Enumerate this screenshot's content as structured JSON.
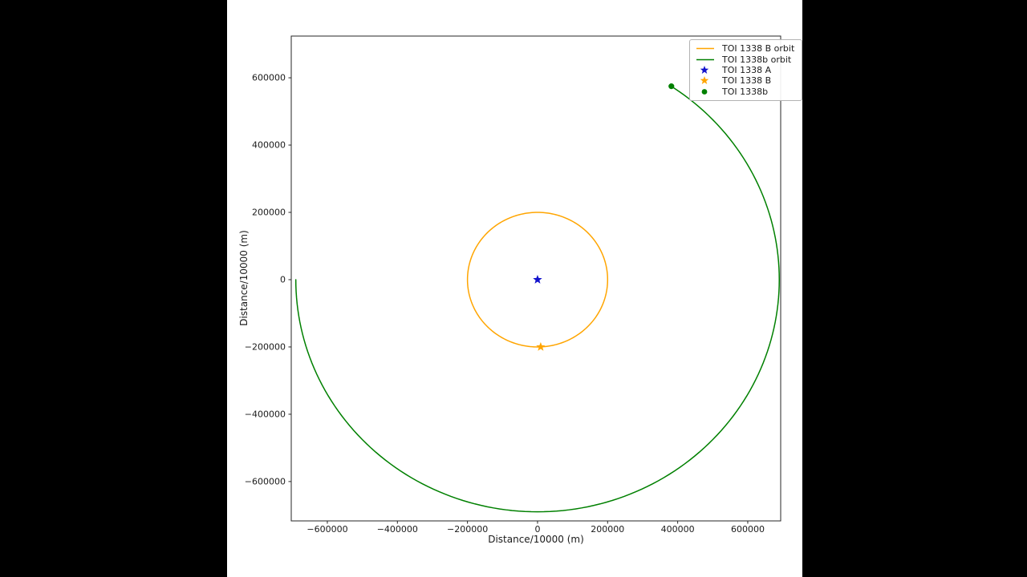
{
  "window": {
    "background_color": "#000000",
    "panel_background_color": "#ffffff",
    "frame_color": "#262626",
    "text_color": "#1a1a1a"
  },
  "chart_data": {
    "type": "line",
    "title": "",
    "xlabel": "Distance/10000 (m)",
    "ylabel": "Distance/10000 (m)",
    "xlim": [
      -703000,
      694000
    ],
    "ylim": [
      -717000,
      724000
    ],
    "xticks": [
      -600000,
      -400000,
      -200000,
      0,
      200000,
      400000,
      600000
    ],
    "yticks": [
      -600000,
      -400000,
      -200000,
      0,
      200000,
      400000,
      600000
    ],
    "grid": false,
    "legend_position": "upper-right",
    "series": [
      {
        "name": "TOI 1338 B orbit",
        "color": "#ffa500",
        "shape": "arc",
        "center": [
          0,
          0
        ],
        "radius": 200000,
        "start_deg": 0,
        "end_deg": 360,
        "line_width": 1.5,
        "legend_glyph": "line"
      },
      {
        "name": "TOI 1338b orbit",
        "color": "#008000",
        "shape": "arc",
        "center": [
          0,
          0
        ],
        "radius": 690000,
        "start_deg": 180,
        "end_deg": 416.4,
        "line_width": 1.5,
        "legend_glyph": "line"
      }
    ],
    "markers": [
      {
        "name": "TOI 1338 A",
        "color": "#1212cc",
        "marker": "star",
        "x": 0,
        "y": 0,
        "size": 6,
        "legend_glyph": "star"
      },
      {
        "name": "TOI 1338 B",
        "color": "#ffa500",
        "marker": "star",
        "x": 9000,
        "y": -199800,
        "size": 6,
        "legend_glyph": "star"
      },
      {
        "name": "TOI 1338b",
        "color": "#008000",
        "marker": "circle",
        "x": 382000,
        "y": 574800,
        "size": 3.6,
        "legend_glyph": "dot"
      }
    ]
  }
}
